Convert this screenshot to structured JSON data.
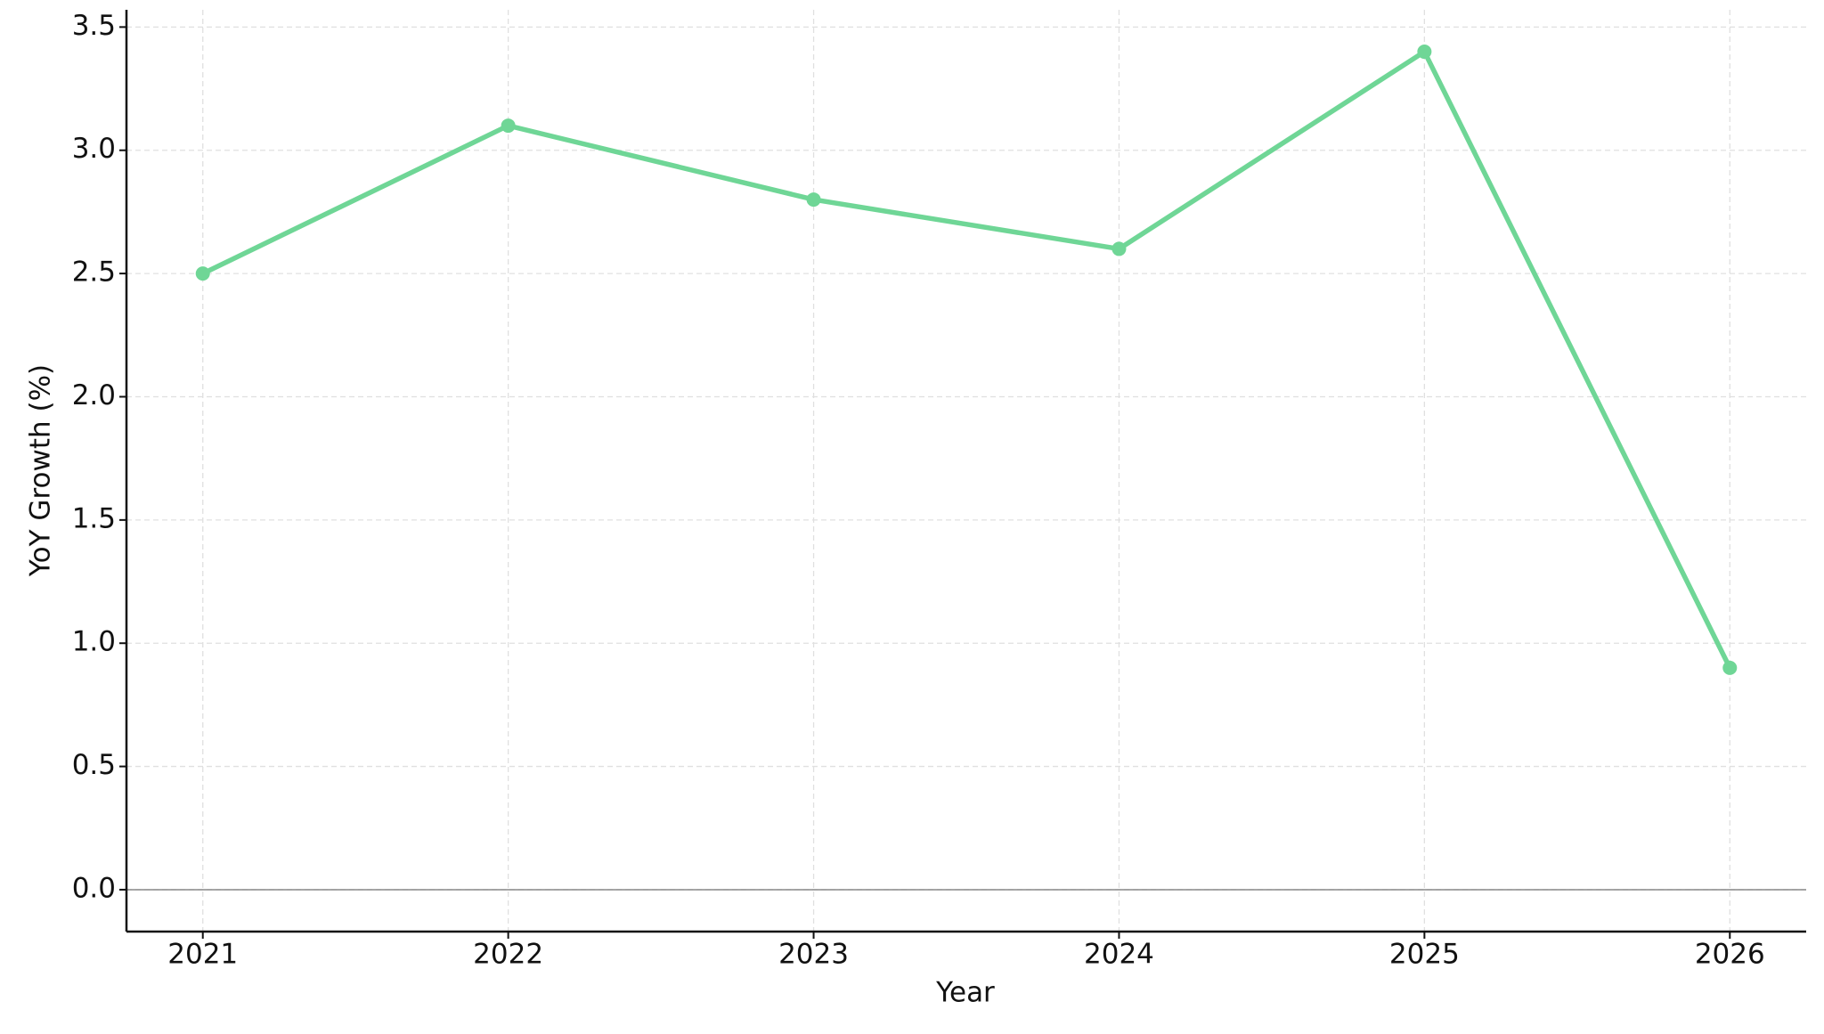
{
  "chart_data": {
    "type": "line",
    "x_label": "Year",
    "y_label": "YoY Growth (%)",
    "x": [
      2021,
      2022,
      2023,
      2024,
      2025,
      2026
    ],
    "series": [
      {
        "color": "#6fd696",
        "values": [
          2.5,
          3.1,
          2.8,
          2.6,
          3.4,
          0.9
        ]
      }
    ],
    "xlim": [
      2020.75,
      2026.25
    ],
    "xticks": [
      2021,
      2022,
      2023,
      2024,
      2025,
      2026
    ],
    "ylim": [
      -0.17,
      3.57
    ],
    "yticks": [
      {
        "value": 0,
        "label": "0.0"
      },
      0.5,
      {
        "value": 1,
        "label": "1.0"
      },
      1.5,
      {
        "value": 2,
        "label": "2.0"
      },
      2.5,
      {
        "value": 3,
        "label": "3.0"
      },
      3.5
    ],
    "grid": true,
    "zero_line": true
  }
}
